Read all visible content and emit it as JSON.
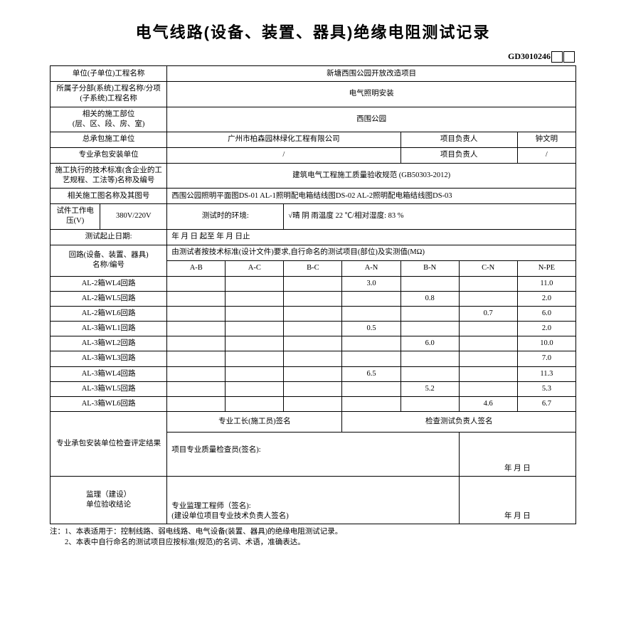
{
  "title": "电气线路(设备、装置、器具)绝缘电阻测试记录",
  "doc_code": "GD3010246",
  "header": {
    "row1_label": "单位(子单位)工程名称",
    "row1_value": "新塘西围公园开放改造项目",
    "row2_label": "所属子分部(系统)工程名称/分项(子系统)工程名称",
    "row2_value": "电气照明安装",
    "row3_label": "相关的施工部位\n(层、区、段、房、室)",
    "row3_value": "西围公园",
    "row4_label": "总承包施工单位",
    "row4_value": "广州市柏森园林绿化工程有限公司",
    "row4_label2": "项目负责人",
    "row4_value2": "钟文明",
    "row5_label": "专业承包安装单位",
    "row5_value": "/",
    "row5_label2": "项目负责人",
    "row5_value2": "/",
    "row6_label": "施工执行的技术标准(含企业的工艺规程、工法等)名称及编号",
    "row6_value": "建筑电气工程施工质量验收规范 (GB50303-2012)",
    "row7_label": "相关施工图名称及其图号",
    "row7_value": "西围公园照明平面图DS-01  AL-1照明配电箱结线图DS-02  AL-2照明配电箱结线图DS-03",
    "row8_label1": "试件工作电压(V)",
    "row8_value1": "380V/220V",
    "row8_label2": "测试时的环境:",
    "row8_value2": "√晴      阴      雨温度  22   ℃/相对湿度:    83   %",
    "row9_label": "测试起止日期:",
    "row9_value": "年      月      日  起至          年      月      日止"
  },
  "table_header": {
    "left_label": "回路(设备、装置、器具)\n名称/编号",
    "right_label": "由测试者按技术标准(设计文件)要求,自行命名的测试项目(部位)及实测值(MΩ)",
    "cols": [
      "A-B",
      "A-C",
      "B-C",
      "A-N",
      "B-N",
      "C-N",
      "N-PE"
    ]
  },
  "rows": [
    {
      "name": "AL-2箱WL4回路",
      "v": [
        "",
        "",
        "",
        "3.0",
        "",
        "",
        "11.0"
      ]
    },
    {
      "name": "AL-2箱WL5回路",
      "v": [
        "",
        "",
        "",
        "",
        "0.8",
        "",
        "2.0"
      ]
    },
    {
      "name": "AL-2箱WL6回路",
      "v": [
        "",
        "",
        "",
        "",
        "",
        "0.7",
        "6.0"
      ]
    },
    {
      "name": "AL-3箱WL1回路",
      "v": [
        "",
        "",
        "",
        "0.5",
        "",
        "",
        "2.0"
      ]
    },
    {
      "name": "AL-3箱WL2回路",
      "v": [
        "",
        "",
        "",
        "",
        "6.0",
        "",
        "10.0"
      ]
    },
    {
      "name": "AL-3箱WL3回路",
      "v": [
        "",
        "",
        "",
        "",
        "",
        "",
        "7.0"
      ]
    },
    {
      "name": "AL-3箱WL4回路",
      "v": [
        "",
        "",
        "",
        "6.5",
        "",
        "",
        "11.3"
      ]
    },
    {
      "name": "AL-3箱WL5回路",
      "v": [
        "",
        "",
        "",
        "",
        "5.2",
        "",
        "5.3"
      ]
    },
    {
      "name": "AL-3箱WL6回路",
      "v": [
        "",
        "",
        "",
        "",
        "",
        "4.6",
        "6.7"
      ]
    }
  ],
  "footer": {
    "check_label": "专业承包安装单位检查评定结果",
    "sign1": "专业工长(施工员)签名",
    "sign2": "检查测试负责人签名",
    "sign3": "项目专业质量检查员(签名):",
    "date": "年  月  日",
    "supervise_label": "监理（建设）\n单位验收结论",
    "sign4": "专业监理工程师（签名):\n(建设单位项目专业技术负责人签名)"
  },
  "notes": {
    "line1": "注：1、本表适用于：控制线路、弱电线路、电气设备(装置、器具)的绝缘电阻测试记录。",
    "line2": "　　2、本表中自行命名的测试项目应按标准(规范)的名词、术语，准确表达。"
  }
}
